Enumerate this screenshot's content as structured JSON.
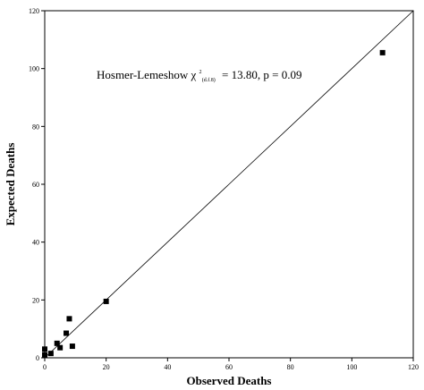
{
  "chart_data": {
    "type": "scatter",
    "title": "",
    "xlabel": "Observed Deaths",
    "ylabel": "Expected Deaths",
    "xlim": [
      0,
      120
    ],
    "ylim": [
      0,
      120
    ],
    "xticks": [
      0,
      20,
      40,
      60,
      80,
      100,
      120
    ],
    "yticks": [
      0,
      20,
      40,
      60,
      80,
      100,
      120
    ],
    "grid": false,
    "reference_line": {
      "from": [
        0,
        0
      ],
      "to": [
        120,
        120
      ]
    },
    "annotation": {
      "prefix": "Hosmer-Lemeshow χ",
      "superscript": "2",
      "subscript": "(d.f.8)",
      "suffix": "= 13.80, p = 0.09"
    },
    "series": [
      {
        "x": [
          0,
          0,
          2,
          4,
          5,
          7,
          8,
          9,
          20,
          110
        ],
        "y": [
          1,
          3,
          1.5,
          5,
          3.5,
          8.5,
          13.5,
          4,
          19.5,
          105.5
        ]
      }
    ]
  }
}
